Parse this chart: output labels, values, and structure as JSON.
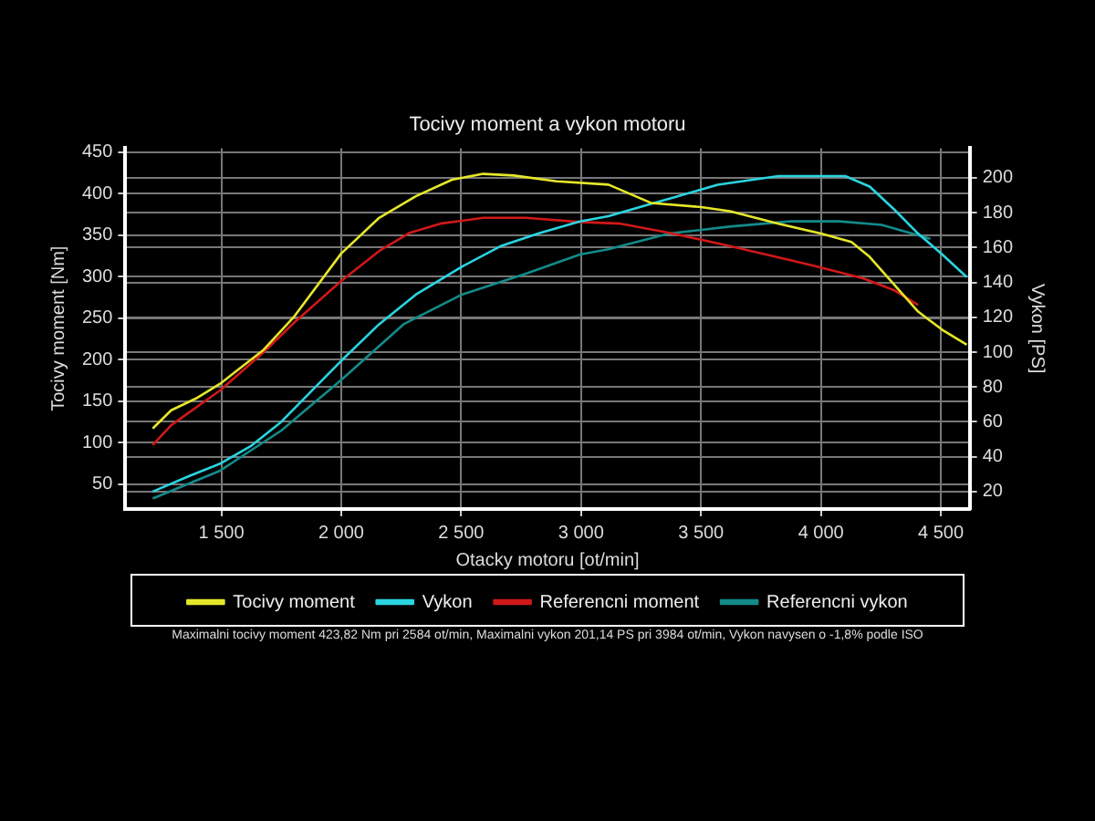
{
  "chart_data": {
    "type": "line",
    "title": "Tocivy moment a vykon motoru",
    "xlabel": "Otacky motoru [ot/min]",
    "ylabel": "Tocivy moment [Nm]",
    "y2label": "Vykon [PS]",
    "xlim": [
      1100,
      4620
    ],
    "xticks": [
      {
        "value": 1500,
        "label": "1 500"
      },
      {
        "value": 2000,
        "label": "2 000"
      },
      {
        "value": 2500,
        "label": "2 500"
      },
      {
        "value": 3000,
        "label": "3 000"
      },
      {
        "value": 3500,
        "label": "3 500"
      },
      {
        "value": 4000,
        "label": "4 000"
      },
      {
        "value": 4500,
        "label": "4 500"
      }
    ],
    "ylim": [
      20,
      455
    ],
    "yticks": [
      50,
      100,
      150,
      200,
      250,
      300,
      350,
      400,
      450
    ],
    "y2lim": [
      10,
      217
    ],
    "y2ticks": [
      20,
      40,
      60,
      80,
      100,
      120,
      140,
      160,
      180,
      200
    ],
    "grid": true,
    "legend": "bottom",
    "line_style": "solid",
    "marker": "none",
    "annotations": [
      "Maximalni tocivy moment 423,82 Nm pri 2584 ot/min,  Maximalni vykon 201,14 PS pri 3984 ot/min,  Vykon navysen o -1,8% podle ISO"
    ],
    "series": [
      {
        "name": "Tocivy moment",
        "color": "#e6e62a",
        "x": [
          1214,
          1291,
          1393,
          1495,
          1673,
          1801,
          2000,
          2158,
          2311,
          2462,
          2592,
          2719,
          2898,
          3114,
          3291,
          3500,
          3620,
          3823,
          4000,
          4127,
          4203,
          4304,
          4405,
          4506,
          4608
        ],
        "values": [
          117,
          139,
          153,
          171,
          211,
          251,
          328,
          371,
          397,
          417,
          424,
          422,
          415,
          411,
          389,
          384,
          379,
          364,
          352,
          342,
          324,
          291,
          258,
          236,
          218
        ]
      },
      {
        "name": "Vykon",
        "color": "#2ad4e0",
        "axis": "y2",
        "x": [
          1214,
          1367,
          1495,
          1622,
          1750,
          1878,
          2000,
          2158,
          2311,
          2503,
          2668,
          2821,
          2995,
          3114,
          3291,
          3392,
          3570,
          3823,
          4000,
          4101,
          4203,
          4304,
          4405,
          4506,
          4608
        ],
        "values": [
          20,
          29,
          36,
          46,
          60,
          78,
          95,
          116,
          133,
          149,
          161,
          168,
          175,
          178,
          185,
          189,
          196,
          201,
          201,
          201,
          195,
          182,
          168,
          156,
          143
        ]
      },
      {
        "name": "Referencni moment",
        "color": "#d01818",
        "x": [
          1214,
          1291,
          1495,
          1673,
          1801,
          2000,
          2158,
          2286,
          2413,
          2592,
          2770,
          2995,
          3165,
          3367,
          3620,
          3873,
          4000,
          4177,
          4304,
          4405
        ],
        "values": [
          97,
          121,
          163,
          208,
          244,
          295,
          331,
          353,
          364,
          371,
          371,
          366,
          364,
          353,
          337,
          320,
          311,
          298,
          284,
          266
        ]
      },
      {
        "name": "Referencni vykon",
        "color": "#148a8a",
        "axis": "y2",
        "x": [
          1214,
          1495,
          1750,
          2000,
          2260,
          2503,
          2770,
          2995,
          3114,
          3367,
          3620,
          3873,
          4076,
          4253,
          4380,
          4456
        ],
        "values": [
          16,
          32,
          55,
          84,
          116,
          133,
          145,
          156,
          159,
          168,
          172,
          175,
          175,
          173,
          168,
          165
        ]
      }
    ]
  }
}
